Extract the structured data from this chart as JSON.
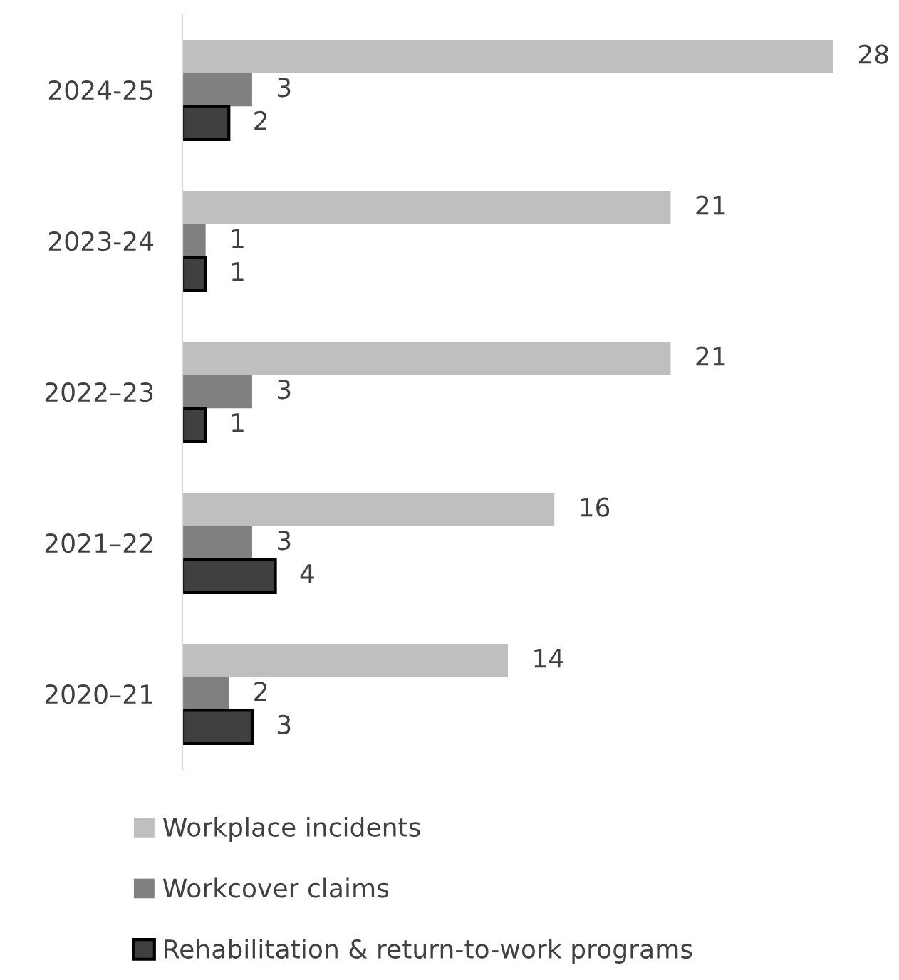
{
  "chart_data": {
    "type": "bar",
    "orientation": "horizontal",
    "categories": [
      "2024-25",
      "2023-24",
      "2022–23",
      "2021–22",
      "2020–21"
    ],
    "series": [
      {
        "name": "Workplace incidents",
        "color": "#bfbfbf",
        "values": [
          28,
          21,
          21,
          16,
          14
        ]
      },
      {
        "name": "Workcover claims",
        "color": "#808080",
        "values": [
          3,
          1,
          3,
          3,
          2
        ]
      },
      {
        "name": "Rehabilitation & return-to-work programs",
        "color": "#404040",
        "values": [
          2,
          1,
          1,
          4,
          3
        ]
      }
    ],
    "data_labels": true,
    "legend": "bottom",
    "grid": false
  }
}
